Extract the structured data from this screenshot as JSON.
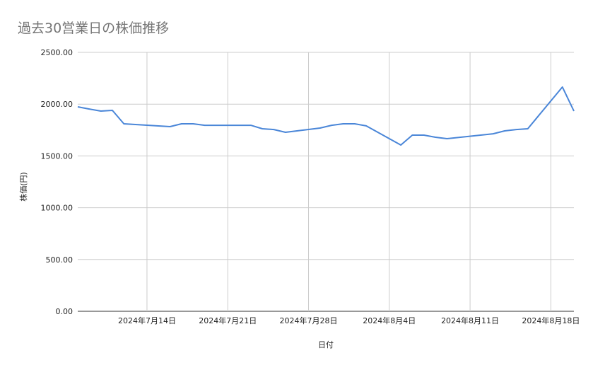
{
  "chart_data": {
    "type": "line",
    "title": "過去30営業日の株価推移",
    "xlabel": "日付",
    "ylabel": "株価(円)",
    "ylim": [
      0,
      2500
    ],
    "xlim": [
      "2024-07-08",
      "2024-08-20"
    ],
    "yticks": [
      "0.00",
      "500.00",
      "1000.00",
      "1500.00",
      "2000.00",
      "2500.00"
    ],
    "xticks": [
      {
        "date": "2024-07-14",
        "label": "2024年7月14日"
      },
      {
        "date": "2024-07-21",
        "label": "2024年7月21日"
      },
      {
        "date": "2024-07-28",
        "label": "2024年7月28日"
      },
      {
        "date": "2024-08-04",
        "label": "2024年8月4日"
      },
      {
        "date": "2024-08-11",
        "label": "2024年8月11日"
      },
      {
        "date": "2024-08-18",
        "label": "2024年8月18日"
      }
    ],
    "grid": true,
    "line_color": "#4a86d8",
    "x": [
      "2024-07-08",
      "2024-07-09",
      "2024-07-10",
      "2024-07-11",
      "2024-07-12",
      "2024-07-16",
      "2024-07-17",
      "2024-07-18",
      "2024-07-19",
      "2024-07-22",
      "2024-07-23",
      "2024-07-24",
      "2024-07-25",
      "2024-07-26",
      "2024-07-29",
      "2024-07-30",
      "2024-07-31",
      "2024-08-01",
      "2024-08-02",
      "2024-08-05",
      "2024-08-06",
      "2024-08-07",
      "2024-08-08",
      "2024-08-09",
      "2024-08-13",
      "2024-08-14",
      "2024-08-15",
      "2024-08-16",
      "2024-08-19",
      "2024-08-20"
    ],
    "y": [
      1974,
      1953,
      1933,
      1940,
      1810,
      1783,
      1810,
      1810,
      1796,
      1796,
      1796,
      1762,
      1755,
      1728,
      1769,
      1796,
      1810,
      1810,
      1790,
      1605,
      1701,
      1701,
      1680,
      1667,
      1714,
      1742,
      1755,
      1762,
      2165,
      1933
    ]
  }
}
